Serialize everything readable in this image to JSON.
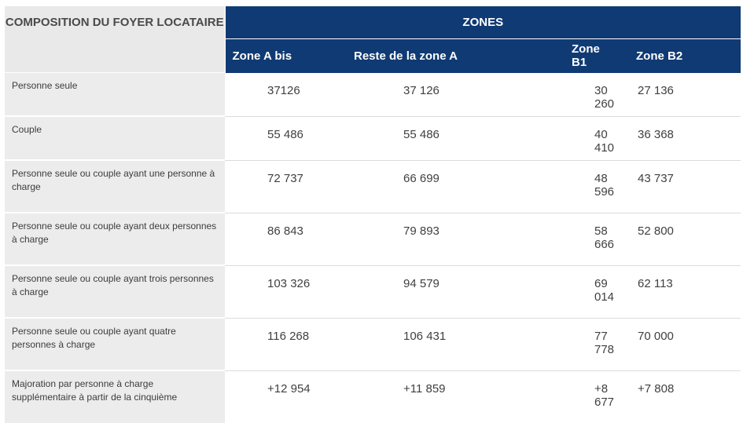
{
  "table": {
    "corner_header": "COMPOSITION DU FOYER LOCATAIRE",
    "group_header": "ZONES",
    "zone_columns": [
      "Zone A bis",
      "Reste de la zone A",
      "Zone B1",
      "Zone B2"
    ],
    "rows": [
      {
        "label": "Personne seule",
        "values": [
          "37126",
          "37 126",
          "30 260",
          "27 136"
        ]
      },
      {
        "label": "Couple",
        "values": [
          "55 486",
          "55 486",
          "40 410",
          "36 368"
        ]
      },
      {
        "label": "Personne seule ou couple ayant une personne à charge",
        "values": [
          "72 737",
          "66 699",
          "48 596",
          "43 737"
        ]
      },
      {
        "label": "Personne seule ou couple ayant deux personnes à charge",
        "values": [
          "86 843",
          "79 893",
          "58 666",
          "52 800"
        ]
      },
      {
        "label": "Personne seule ou couple ayant trois personnes à charge",
        "values": [
          "103 326",
          "94 579",
          "69 014",
          "62 113"
        ]
      },
      {
        "label": "Personne seule ou couple ayant quatre personnes à charge",
        "values": [
          "116 268",
          "106 431",
          "77 778",
          "70 000"
        ]
      },
      {
        "label": "Majoration par personne à charge supplémentaire à partir de la cinquième",
        "values": [
          "+12 954",
          "+11 859",
          "+8 677",
          "+7 808"
        ]
      }
    ]
  },
  "colors": {
    "header_blue": "#103a73",
    "label_gray": "#ececec",
    "header_text": "#ffffff"
  }
}
